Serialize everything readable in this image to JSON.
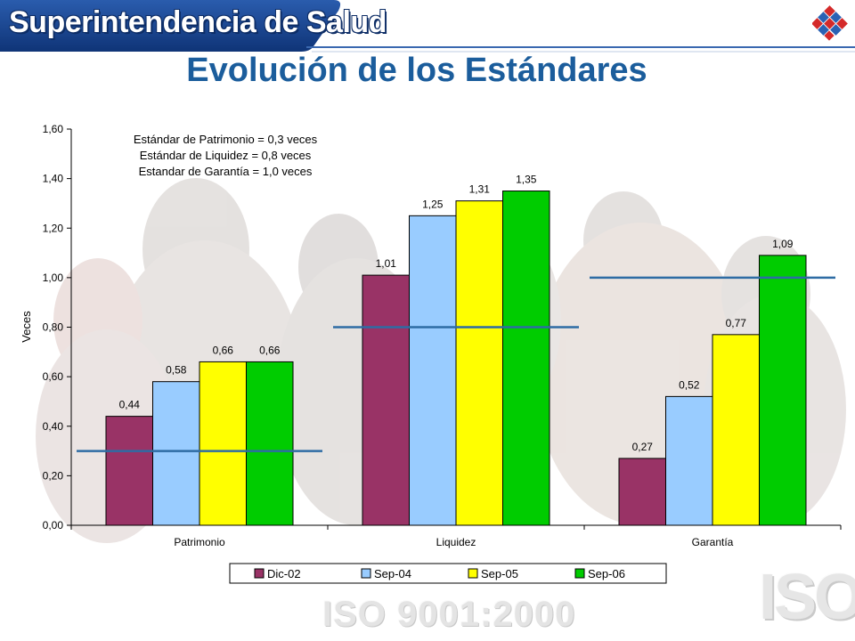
{
  "header": {
    "brand": "Superintendencia de Salud",
    "title": "Evolución de los Estándares"
  },
  "footer": {
    "iso_text": "ISO 9001:2000",
    "iso_mark": "ISO"
  },
  "colors": {
    "banner": "#143f86",
    "title": "#1b5d9c",
    "threshold_line": "#2e6ca4"
  },
  "chart_data": {
    "type": "bar",
    "categories": [
      "Patrimonio",
      "Liquidez",
      "Garantía"
    ],
    "series": [
      {
        "name": "Dic-02",
        "color": "#993366",
        "values": [
          0.44,
          1.01,
          0.27
        ],
        "labels": [
          "0,44",
          "1,01",
          "0,27"
        ]
      },
      {
        "name": "Sep-04",
        "color": "#99ccff",
        "values": [
          0.58,
          1.25,
          0.52
        ],
        "labels": [
          "0,58",
          "1,25",
          "0,52"
        ]
      },
      {
        "name": "Sep-05",
        "color": "#ffff00",
        "values": [
          0.66,
          1.31,
          0.77
        ],
        "labels": [
          "0,66",
          "1,31",
          "0,77"
        ]
      },
      {
        "name": "Sep-06",
        "color": "#00cc00",
        "values": [
          0.66,
          1.35,
          1.09
        ],
        "labels": [
          "0,66",
          "1,35",
          "1,09"
        ]
      }
    ],
    "standards": [
      0.3,
      0.8,
      1.0
    ],
    "ylabel": "Veces",
    "xlabel": "",
    "ylim": [
      0,
      1.6
    ],
    "yticks": [
      "0,00",
      "0,20",
      "0,40",
      "0,60",
      "0,80",
      "1,00",
      "1,20",
      "1,40",
      "1,60"
    ],
    "annotations": [
      "Estándar de Patrimonio = 0,3 veces",
      "Estándar de Liquidez = 0,8 veces",
      "Estandar de Garantía = 1,0 veces"
    ],
    "legend_position": "bottom",
    "grid": false
  }
}
